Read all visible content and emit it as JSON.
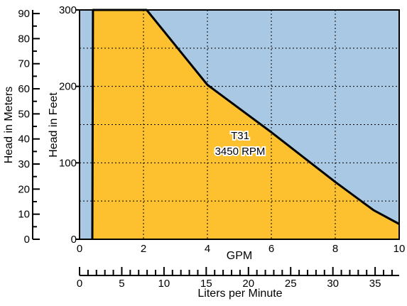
{
  "chart_data": {
    "type": "area",
    "x": {
      "label": "GPM",
      "range": [
        0,
        10
      ],
      "ticks": [
        0,
        2,
        4,
        6,
        8,
        10
      ]
    },
    "x2": {
      "label": "Liters per Minute",
      "range": [
        0,
        37.85
      ],
      "ticks": [
        0,
        5,
        10,
        15,
        20,
        25,
        30,
        35
      ],
      "minor_step": 1
    },
    "y": {
      "label": "Head in Feet",
      "range": [
        0,
        300
      ],
      "ticks": [
        0,
        100,
        200,
        300
      ],
      "gridlines": [
        50,
        100,
        150,
        200,
        250
      ]
    },
    "y2": {
      "label": "Head in Meters",
      "range": [
        0,
        91.44
      ],
      "ticks": [
        0,
        10,
        20,
        30,
        40,
        50,
        60,
        70,
        80,
        90
      ]
    },
    "series": [
      {
        "curve_label": [
          "T31",
          "3450 RPM"
        ],
        "x": [
          0.4,
          0.42,
          2.1,
          4.0,
          6.0,
          8.0,
          9.2,
          10.0
        ],
        "y": [
          0,
          300,
          300,
          202,
          140,
          75,
          38,
          20
        ]
      }
    ],
    "grid": true,
    "colors": {
      "operating_region": "#FDC02F",
      "outside_region": "#A8C8E4",
      "curve": "#000000",
      "grid": "#000000"
    }
  }
}
